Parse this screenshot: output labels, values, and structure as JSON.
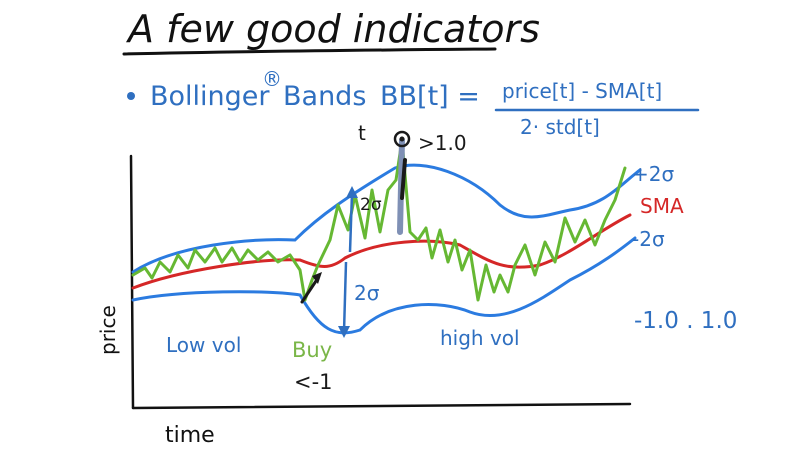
{
  "title": "A few good indicators",
  "bullet": {
    "label": "Bollinger",
    "registered": "®",
    "label_tail": "Bands",
    "formula_lhs": "BB[t] =",
    "numerator": "price[t] - SMA[t]",
    "denominator": "2· std[t]"
  },
  "chart": {
    "y_axis_label": "price",
    "x_axis_label": "time",
    "band_labels": {
      "upper": "+2σ",
      "middle": "SMA",
      "lower": "-2σ"
    },
    "annotations": {
      "t_marker": "t",
      "greater_than": ">1.0",
      "upper_width": "2σ",
      "lower_width": "2σ",
      "low_vol": "Low vol",
      "high_vol": "high vol",
      "buy": "Buy",
      "buy_condition": "<-1",
      "range": "-1.0 . 1.0"
    }
  },
  "colors": {
    "title": "#111111",
    "blue_ink": "#2f6fc0",
    "band": "#2b7be0",
    "sma": "#d52727",
    "price": "#66b833",
    "annotation": "#1a1a1a",
    "marker": "#7f90b5",
    "buy": "#7ab648"
  }
}
